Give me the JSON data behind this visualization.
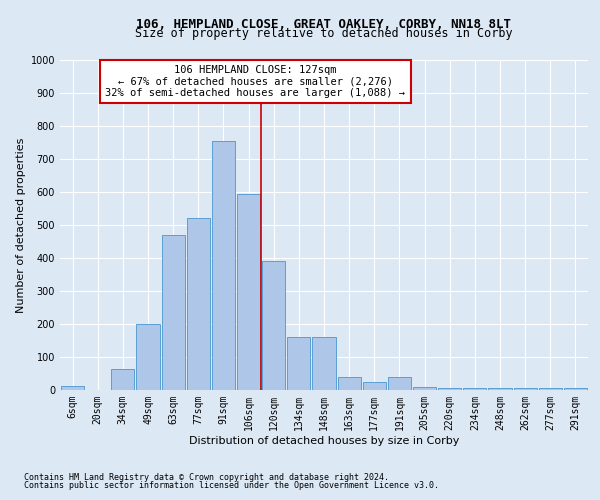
{
  "title": "106, HEMPLAND CLOSE, GREAT OAKLEY, CORBY, NN18 8LT",
  "subtitle": "Size of property relative to detached houses in Corby",
  "xlabel": "Distribution of detached houses by size in Corby",
  "ylabel": "Number of detached properties",
  "footnote1": "Contains HM Land Registry data © Crown copyright and database right 2024.",
  "footnote2": "Contains public sector information licensed under the Open Government Licence v3.0.",
  "categories": [
    "6sqm",
    "20sqm",
    "34sqm",
    "49sqm",
    "63sqm",
    "77sqm",
    "91sqm",
    "106sqm",
    "120sqm",
    "134sqm",
    "148sqm",
    "163sqm",
    "177sqm",
    "191sqm",
    "205sqm",
    "220sqm",
    "234sqm",
    "248sqm",
    "262sqm",
    "277sqm",
    "291sqm"
  ],
  "values": [
    12,
    0,
    65,
    200,
    470,
    520,
    755,
    595,
    390,
    160,
    160,
    40,
    25,
    40,
    10,
    5,
    5,
    5,
    5,
    5,
    5
  ],
  "bar_color": "#aec6e8",
  "bar_edge_color": "#5a9fd4",
  "property_line_x": 7.5,
  "annotation_title": "106 HEMPLAND CLOSE: 127sqm",
  "annotation_line1": "← 67% of detached houses are smaller (2,276)",
  "annotation_line2": "32% of semi-detached houses are larger (1,088) →",
  "annotation_box_color": "#ffffff",
  "annotation_box_edge": "#cc0000",
  "vline_color": "#cc0000",
  "ylim": [
    0,
    1000
  ],
  "yticks": [
    0,
    100,
    200,
    300,
    400,
    500,
    600,
    700,
    800,
    900,
    1000
  ],
  "bg_color": "#dde8f5",
  "plot_bg_color": "#dde8f5",
  "grid_color": "#ffffff",
  "title_fontsize": 9,
  "subtitle_fontsize": 8.5,
  "axis_label_fontsize": 8,
  "tick_fontsize": 7,
  "annotation_fontsize": 7.5,
  "footnote_fontsize": 6
}
